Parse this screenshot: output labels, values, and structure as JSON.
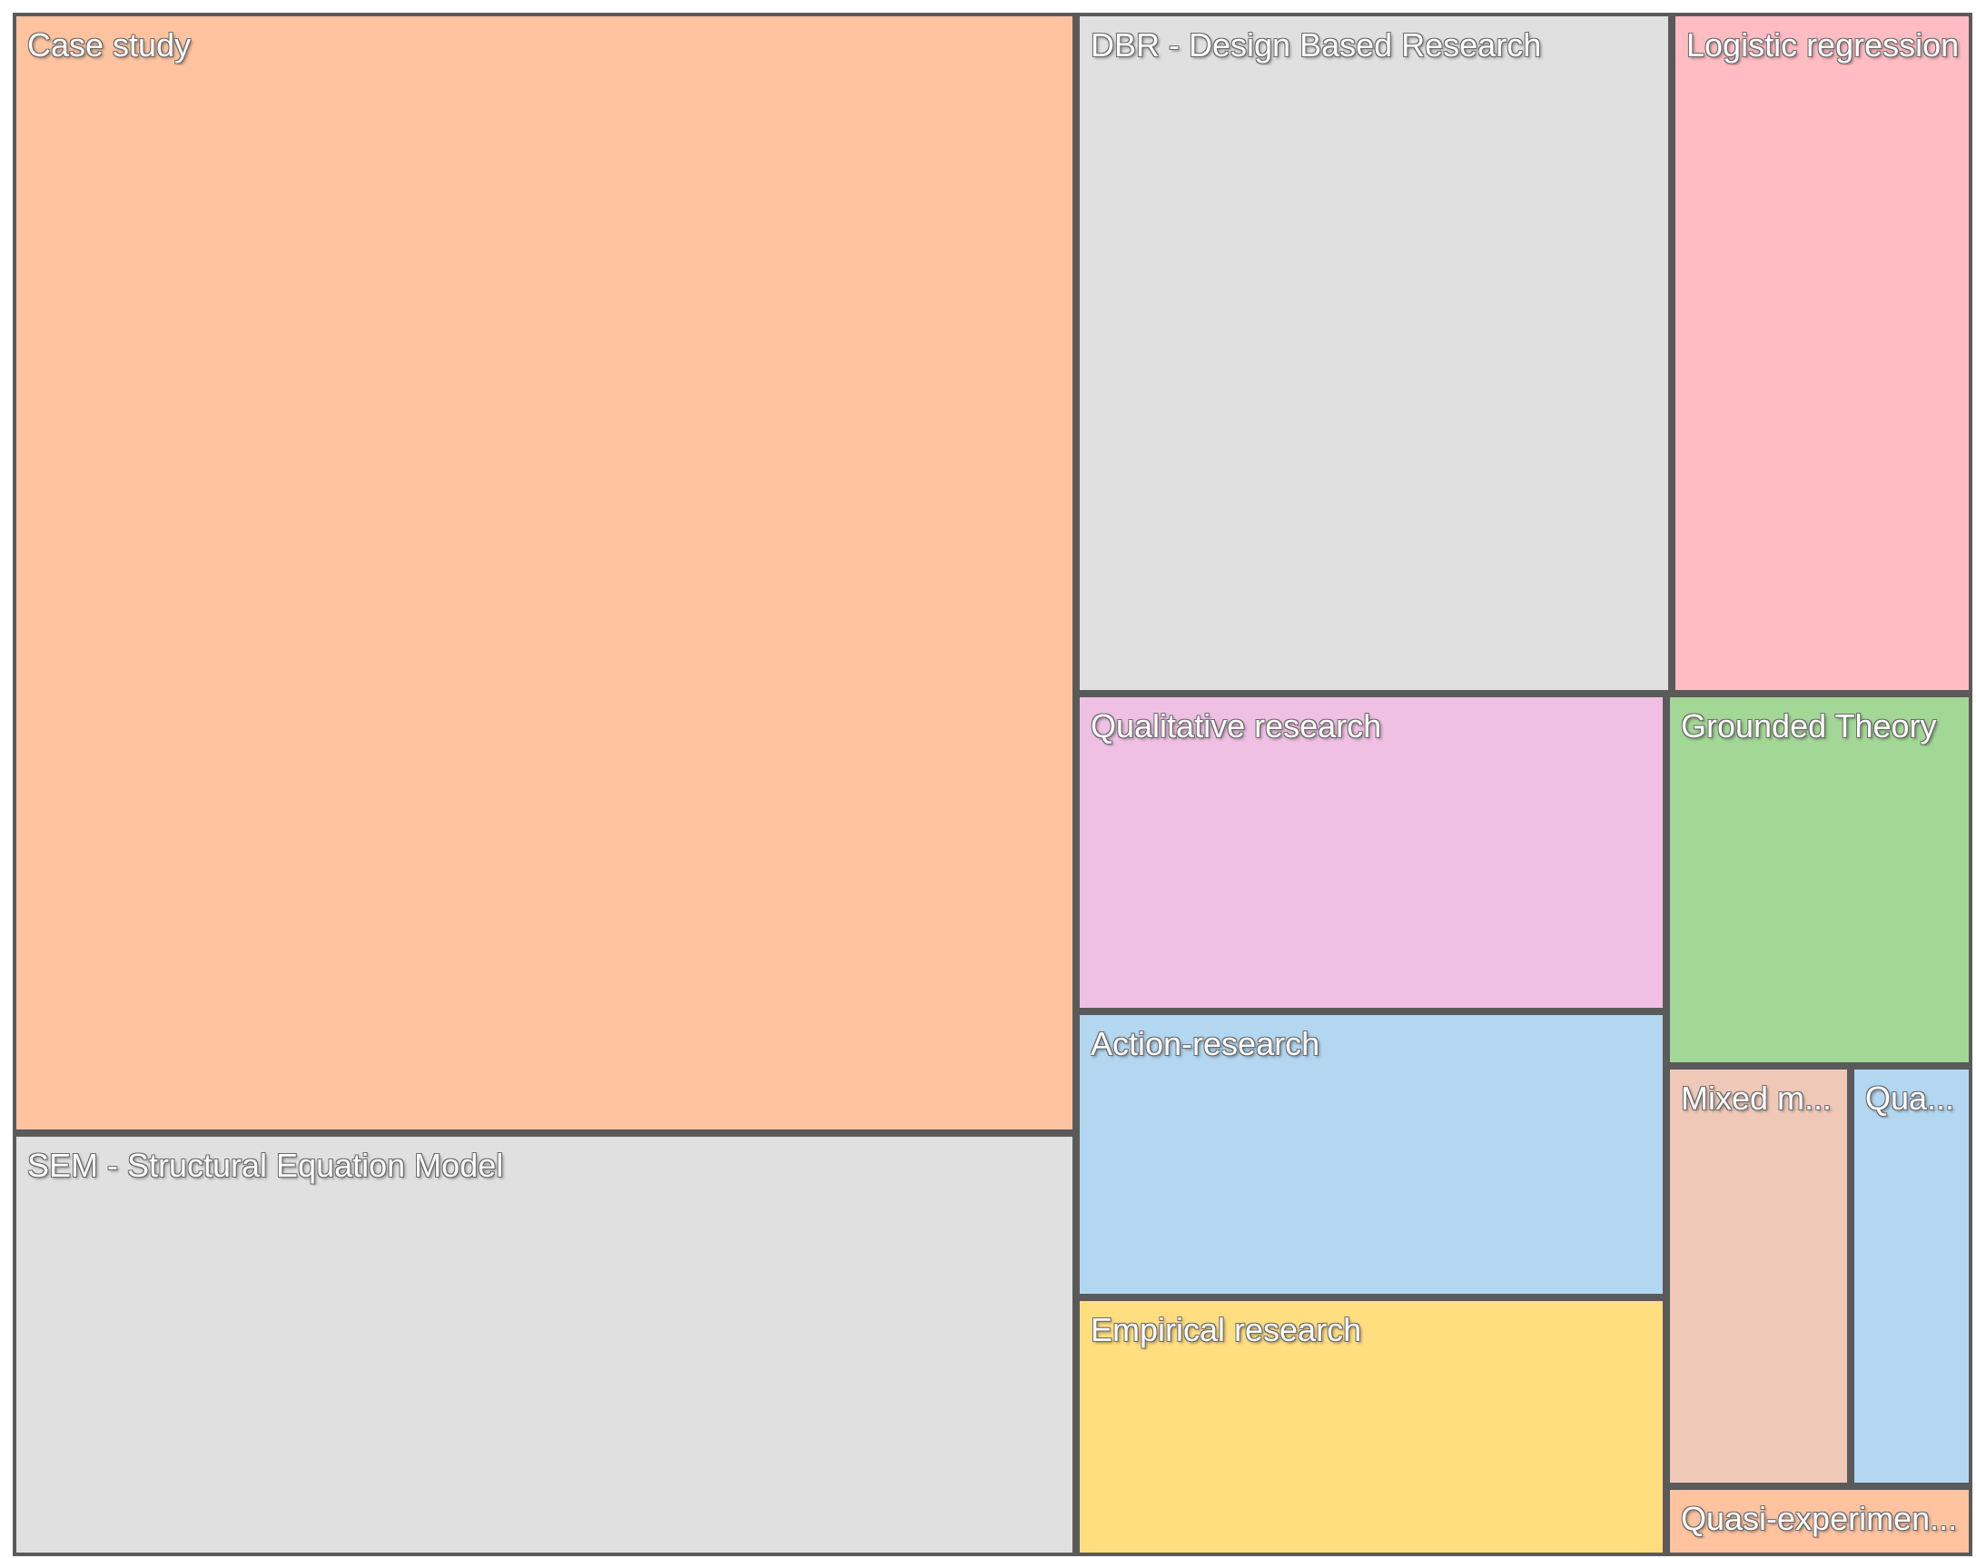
{
  "chart_data": {
    "type": "treemap",
    "title": "",
    "items": [
      {
        "label": "Case study",
        "color": "#FFC3A0"
      },
      {
        "label": "SEM - Structural Equation Model",
        "color": "#E0E0E0"
      },
      {
        "label": "DBR - Design Based Research",
        "color": "#E0E0E0"
      },
      {
        "label": "Logistic regression",
        "color": "#FFBCC3"
      },
      {
        "label": "Qualitative research",
        "color": "#F0C0E4"
      },
      {
        "label": "Action-research",
        "color": "#B3D7F0"
      },
      {
        "label": "Empirical research",
        "color": "#FFDE80"
      },
      {
        "label": "Grounded Theory",
        "color": "#A3D796"
      },
      {
        "label": "Mixed m...",
        "color": "#F0C8B8"
      },
      {
        "label": "Qua...",
        "color": "#B3D7F0"
      },
      {
        "label": "Quasi-experimen...",
        "color": "#FFC3A0"
      }
    ]
  }
}
